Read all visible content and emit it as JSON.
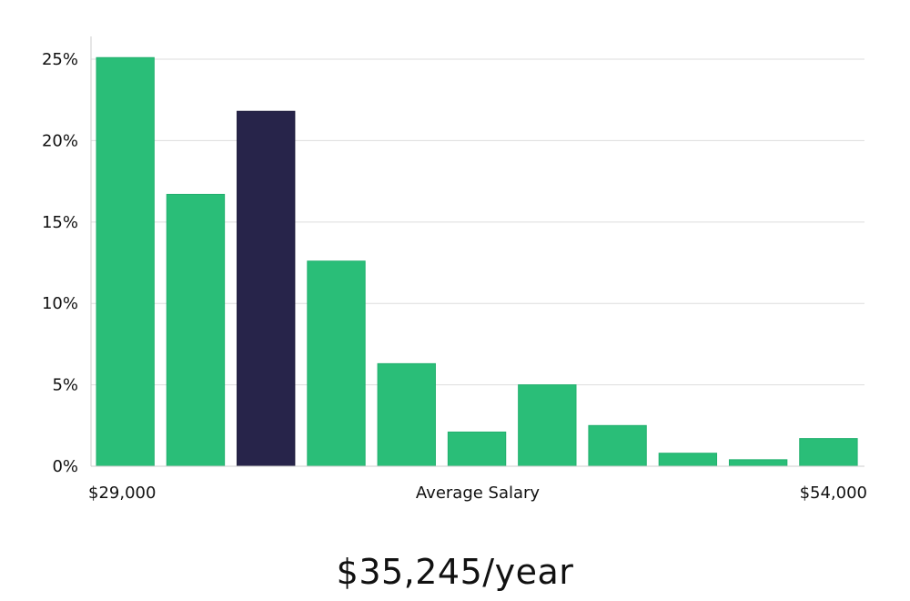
{
  "headline": "$35,245/year",
  "chart_data": {
    "type": "bar",
    "xlabel": "Average Salary",
    "x_range_labels": [
      "$29,000",
      "$54,000"
    ],
    "ylabel": "",
    "yticks": [
      "0%",
      "5%",
      "10%",
      "15%",
      "20%",
      "25%"
    ],
    "ylim": [
      0,
      26.4
    ],
    "grid": true,
    "highlight_index": 2,
    "colors": {
      "bar": "#2abe78",
      "highlight": "#27244a",
      "grid": "#dddddd",
      "axis": "#cccccc"
    },
    "values": [
      25.1,
      16.7,
      21.8,
      12.6,
      6.3,
      2.1,
      5.0,
      2.5,
      0.8,
      0.4,
      1.7
    ]
  }
}
